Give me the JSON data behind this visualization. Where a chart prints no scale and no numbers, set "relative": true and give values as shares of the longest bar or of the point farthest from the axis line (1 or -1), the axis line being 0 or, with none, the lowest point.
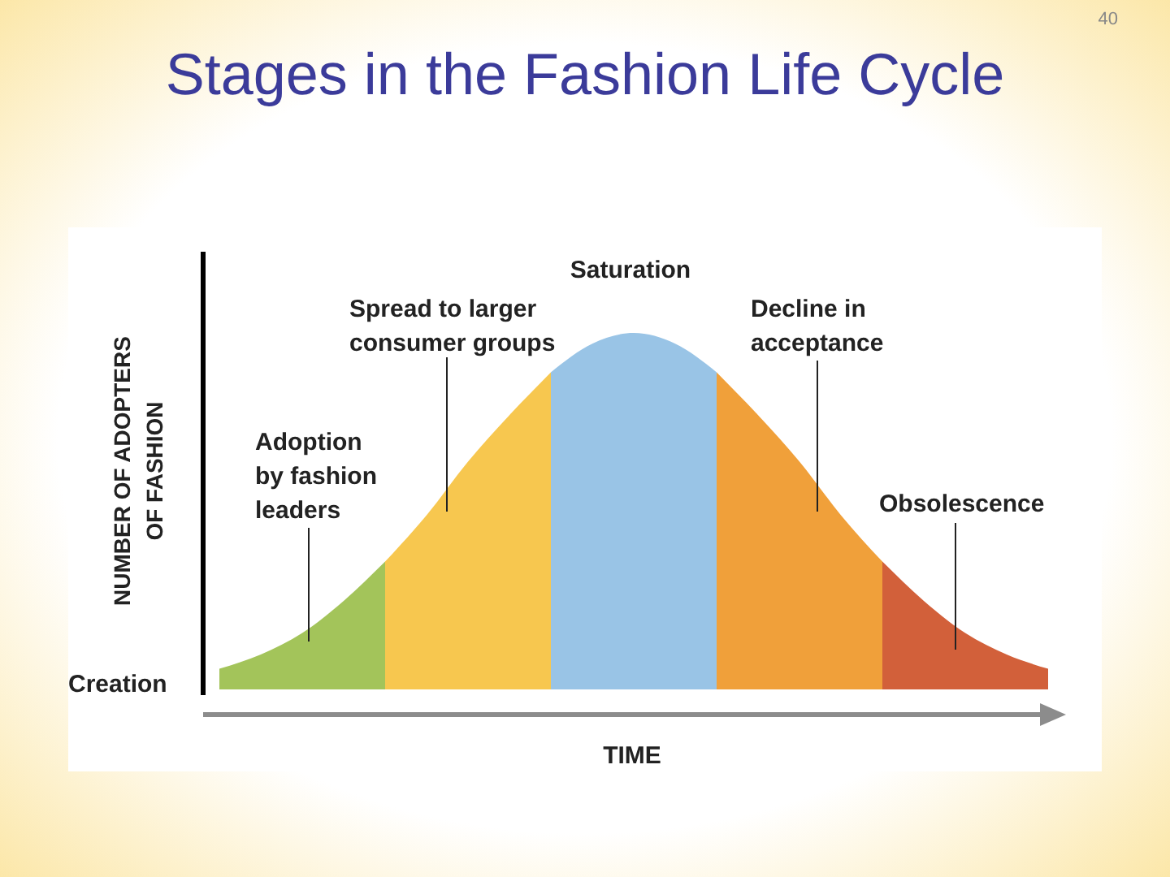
{
  "chart_data": {
    "type": "area",
    "title": "Stages in the Fashion Life Cycle",
    "xlabel": "TIME",
    "ylabel": "NUMBER OF ADOPTERS\nOF FASHION",
    "relative": true,
    "categories": [
      null,
      null,
      null,
      null,
      null,
      null,
      null,
      null,
      null,
      null,
      null,
      null,
      null,
      null,
      null,
      null,
      null,
      null,
      null,
      null,
      null
    ],
    "series": [
      {
        "color": "#a3c45a",
        "values": [
          0.06,
          0.1,
          0.16,
          0.25,
          0.36,
          null,
          null,
          null,
          null,
          null,
          null,
          null,
          null,
          null,
          null,
          null,
          null,
          null,
          null,
          null,
          null
        ]
      },
      {
        "color": "#f7c74f",
        "values": [
          null,
          null,
          null,
          null,
          0.36,
          0.49,
          0.64,
          0.77,
          0.89,
          null,
          null,
          null,
          null,
          null,
          null,
          null,
          null,
          null,
          null,
          null,
          null
        ]
      },
      {
        "color": "#99c4e6",
        "values": [
          null,
          null,
          null,
          null,
          null,
          null,
          null,
          null,
          0.89,
          0.97,
          1,
          0.97,
          0.89,
          null,
          null,
          null,
          null,
          null,
          null,
          null,
          null
        ]
      },
      {
        "color": "#f0a03a",
        "values": [
          null,
          null,
          null,
          null,
          null,
          null,
          null,
          null,
          null,
          null,
          null,
          null,
          0.89,
          0.77,
          0.64,
          0.49,
          0.36,
          null,
          null,
          null,
          null
        ]
      },
      {
        "color": "#d2603a",
        "values": [
          null,
          null,
          null,
          null,
          null,
          null,
          null,
          null,
          null,
          null,
          null,
          null,
          null,
          null,
          null,
          null,
          0.36,
          0.25,
          0.16,
          0.1,
          0.06
        ]
      }
    ],
    "annotations": [
      "Creation",
      "Adoption\nby fashion\nleaders",
      "Spread to larger\nconsumer groups",
      "Saturation",
      "Decline in\nacceptance",
      "Obsolescence",
      "40"
    ]
  }
}
